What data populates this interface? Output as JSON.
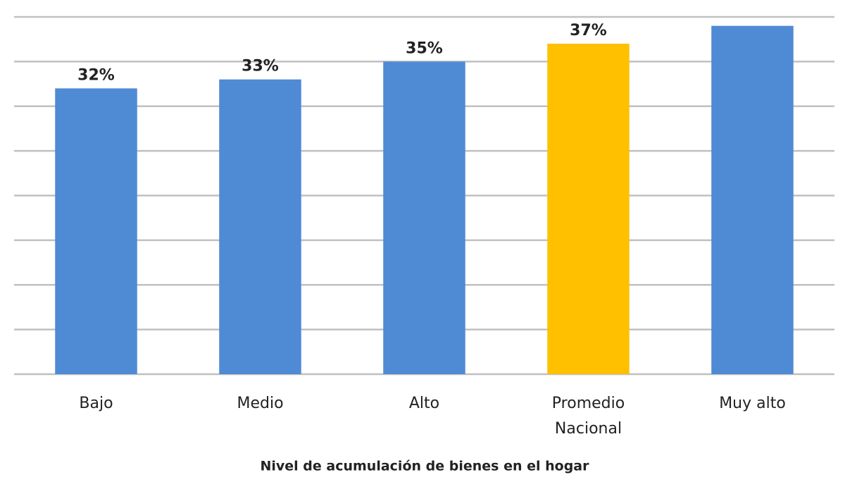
{
  "chart_data": {
    "type": "bar",
    "x_label": "Nivel de acumulación de bienes en el hogar",
    "categories": [
      "Bajo",
      "Medio",
      "Alto",
      "Promedio Nacional",
      "Muy alto"
    ],
    "values": [
      32,
      33,
      35,
      37,
      39
    ],
    "value_labels": [
      "32%",
      "33%",
      "35%",
      "37%",
      null
    ],
    "colors": [
      "#4f8ad4",
      "#4f8ad4",
      "#4f8ad4",
      "#ffc000",
      "#4f8ad4"
    ],
    "ylim": [
      0,
      40
    ],
    "yticks": [
      0,
      5,
      10,
      15,
      20,
      25,
      30,
      35,
      40
    ],
    "grid": true
  }
}
